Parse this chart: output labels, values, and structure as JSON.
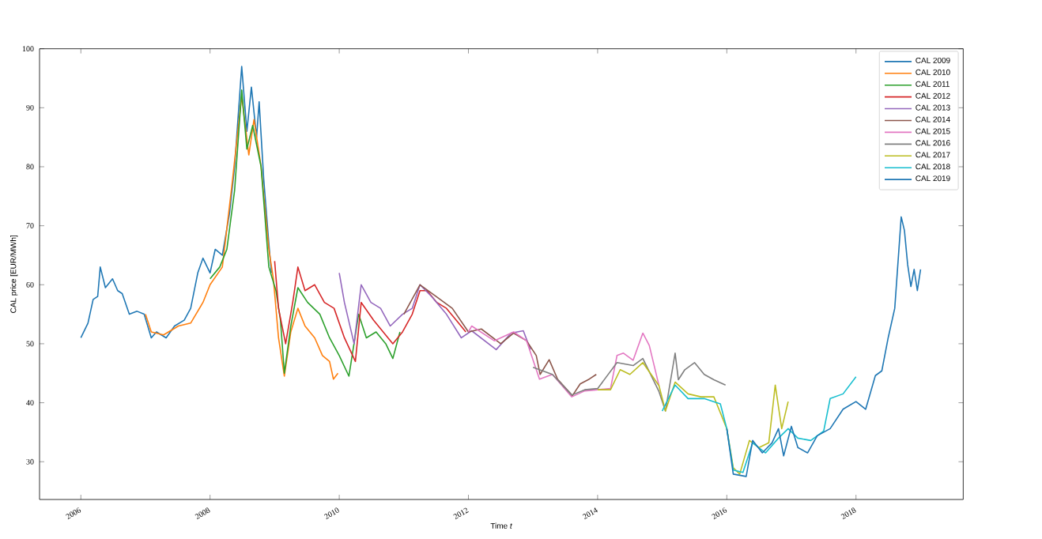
{
  "chart_data": {
    "type": "line",
    "xlabel": "Time *t*",
    "ylabel": "CAL price [EUR/MWh]",
    "xlim": [
      2005.36,
      2019.66
    ],
    "ylim": [
      23.6,
      100
    ],
    "xticks": [
      2006,
      2008,
      2010,
      2012,
      2014,
      2016,
      2018
    ],
    "yticks": [
      30,
      40,
      50,
      60,
      70,
      80,
      90,
      100
    ],
    "legend": "top right",
    "grid": false,
    "series": [
      {
        "name": "CAL 2009",
        "color": "#1f77b4",
        "x": [
          2006.0,
          2006.11,
          2006.19,
          2006.26,
          2006.3,
          2006.38,
          2006.49,
          2006.57,
          2006.64,
          2006.75,
          2006.87,
          2006.98,
          2007.09,
          2007.17,
          2007.32,
          2007.45,
          2007.6,
          2007.7,
          2007.81,
          2007.89,
          2008.0,
          2008.08,
          2008.19,
          2008.3,
          2008.38,
          2008.49,
          2008.57,
          2008.64,
          2008.72,
          2008.76,
          2008.83,
          2008.91,
          2008.95
        ],
        "values": [
          51,
          53.5,
          57.5,
          58,
          63,
          59.5,
          61,
          59,
          58.5,
          55,
          55.5,
          55,
          51,
          52,
          51,
          53,
          54,
          56,
          62,
          64.5,
          62,
          66,
          65,
          72,
          80,
          97,
          86,
          93.5,
          85,
          91,
          78,
          67,
          62
        ]
      },
      {
        "name": "CAL 2010",
        "color": "#ff7f0e",
        "x": [
          2007.0,
          2007.09,
          2007.28,
          2007.51,
          2007.7,
          2007.89,
          2008.0,
          2008.19,
          2008.34,
          2008.49,
          2008.6,
          2008.68,
          2008.79,
          2008.91,
          2008.98,
          2009.06,
          2009.15,
          2009.25,
          2009.36,
          2009.47,
          2009.62,
          2009.74,
          2009.85,
          2009.91,
          2009.98
        ],
        "values": [
          55,
          52,
          51.5,
          53,
          53.5,
          57,
          60,
          63,
          77,
          92,
          82,
          88,
          80,
          66,
          61,
          51,
          44.5,
          52,
          56,
          53,
          51,
          48,
          47,
          44,
          45
        ]
      },
      {
        "name": "CAL 2011",
        "color": "#2ca02c",
        "x": [
          2008.0,
          2008.15,
          2008.26,
          2008.38,
          2008.49,
          2008.57,
          2008.66,
          2008.79,
          2008.91,
          2009.02,
          2009.09,
          2009.15,
          2009.25,
          2009.36,
          2009.51,
          2009.7,
          2009.85,
          2010.0,
          2010.15,
          2010.3,
          2010.42,
          2010.57,
          2010.72,
          2010.83,
          2010.94
        ],
        "values": [
          61,
          63,
          66,
          76,
          93,
          83,
          87,
          80,
          63,
          59,
          54,
          45,
          53,
          59.5,
          57,
          55,
          51,
          48,
          44.5,
          55,
          51,
          52,
          50,
          47.5,
          52
        ]
      },
      {
        "name": "CAL 2012",
        "color": "#d62728",
        "x": [
          2009.0,
          2009.06,
          2009.17,
          2009.28,
          2009.36,
          2009.47,
          2009.62,
          2009.77,
          2009.92,
          2010.08,
          2010.25,
          2010.34,
          2010.53,
          2010.68,
          2010.83,
          2010.98,
          2011.13,
          2011.25,
          2011.36,
          2011.51,
          2011.66,
          2011.81,
          2011.96
        ],
        "values": [
          64,
          56,
          50,
          57,
          63,
          59,
          60,
          57,
          56,
          51,
          47,
          57,
          54,
          52,
          50,
          52,
          55,
          59,
          59,
          57,
          56,
          54,
          52
        ]
      },
      {
        "name": "CAL 2013",
        "color": "#9467bd",
        "x": [
          2010.0,
          2010.08,
          2010.23,
          2010.34,
          2010.49,
          2010.64,
          2010.79,
          2010.98,
          2011.13,
          2011.25,
          2011.43,
          2011.66,
          2011.89,
          2012.05,
          2012.43,
          2012.66,
          2012.85,
          2012.96
        ],
        "values": [
          62,
          57,
          50,
          60,
          57,
          56,
          53,
          55,
          56,
          60,
          58,
          55,
          51,
          52.2,
          49,
          51.8,
          52.2,
          49
        ]
      },
      {
        "name": "CAL 2014",
        "color": "#8c564b",
        "x": [
          2011.0,
          2011.25,
          2011.5,
          2011.75,
          2012.0,
          2012.2,
          2012.5,
          2012.7,
          2012.9,
          2013.05,
          2013.11,
          2013.25,
          2013.38,
          2013.61,
          2013.73,
          2013.87,
          2013.98
        ],
        "values": [
          55,
          60,
          58,
          56,
          52,
          52.5,
          50,
          51.8,
          50.5,
          48,
          44.8,
          47.3,
          44,
          41.2,
          43.2,
          44,
          44.8
        ]
      },
      {
        "name": "CAL 2015",
        "color": "#e377c2",
        "x": [
          2012.0,
          2012.05,
          2012.4,
          2012.7,
          2012.9,
          2013.1,
          2013.3,
          2013.6,
          2013.8,
          2014.0,
          2014.2,
          2014.3,
          2014.4,
          2014.55,
          2014.7,
          2014.8,
          2014.95
        ],
        "values": [
          52,
          53,
          50.5,
          52,
          50.5,
          44,
          44.8,
          41,
          42,
          42.2,
          42.4,
          48,
          48.4,
          47.2,
          51.8,
          49.7,
          42.9
        ]
      },
      {
        "name": "CAL 2016",
        "color": "#7f7f7f",
        "x": [
          2013.0,
          2013.3,
          2013.6,
          2013.8,
          2014.0,
          2014.3,
          2014.55,
          2014.7,
          2014.95,
          2015.05,
          2015.2,
          2015.25,
          2015.35,
          2015.5,
          2015.65,
          2015.8,
          2015.98
        ],
        "values": [
          46,
          44.8,
          41.3,
          42.2,
          42.4,
          46.8,
          46.3,
          47.5,
          41.9,
          38.6,
          48.4,
          43.9,
          45.6,
          46.8,
          44.8,
          43.9,
          43
        ]
      },
      {
        "name": "CAL 2017",
        "color": "#bcbd22",
        "x": [
          2014.0,
          2014.2,
          2014.35,
          2014.5,
          2014.7,
          2014.95,
          2015.05,
          2015.2,
          2015.4,
          2015.6,
          2015.8,
          2016.0,
          2016.1,
          2016.2,
          2016.35,
          2016.5,
          2016.65,
          2016.75,
          2016.85,
          2016.95
        ],
        "values": [
          42.2,
          42.2,
          45.6,
          44.8,
          46.8,
          42.9,
          38.6,
          43.5,
          41.5,
          41,
          41,
          35.6,
          29,
          27.9,
          33.6,
          32.4,
          33.2,
          43,
          35.6,
          40.2
        ]
      },
      {
        "name": "CAL 2018",
        "color": "#17becf",
        "x": [
          2015.0,
          2015.2,
          2015.4,
          2015.65,
          2015.9,
          2016.0,
          2016.1,
          2016.25,
          2016.4,
          2016.6,
          2016.8,
          2016.95,
          2017.1,
          2017.3,
          2017.5,
          2017.6,
          2017.8,
          2018.0
        ],
        "values": [
          38.6,
          43,
          40.7,
          40.7,
          39.8,
          35.6,
          28.6,
          28.2,
          33.2,
          31.5,
          34,
          35.6,
          34,
          33.6,
          35.2,
          40.7,
          41.5,
          44.4
        ]
      },
      {
        "name": "CAL 2019",
        "color": "#1f77b4",
        "x": [
          2016.0,
          2016.1,
          2016.3,
          2016.4,
          2016.55,
          2016.7,
          2016.8,
          2016.88,
          2017.0,
          2017.1,
          2017.25,
          2017.4,
          2017.6,
          2017.8,
          2018.0,
          2018.15,
          2018.3,
          2018.4,
          2018.5,
          2018.6,
          2018.7,
          2018.75,
          2018.8,
          2018.85,
          2018.9,
          2018.95,
          2019.0
        ],
        "values": [
          35.6,
          27.9,
          27.5,
          33.6,
          31.5,
          33.2,
          35.6,
          31,
          36,
          32.4,
          31.5,
          34.4,
          35.6,
          38.9,
          40.2,
          38.9,
          44.6,
          45.4,
          51.1,
          56,
          71.5,
          69.2,
          63.4,
          59.7,
          62.6,
          59,
          62.6
        ]
      }
    ]
  }
}
